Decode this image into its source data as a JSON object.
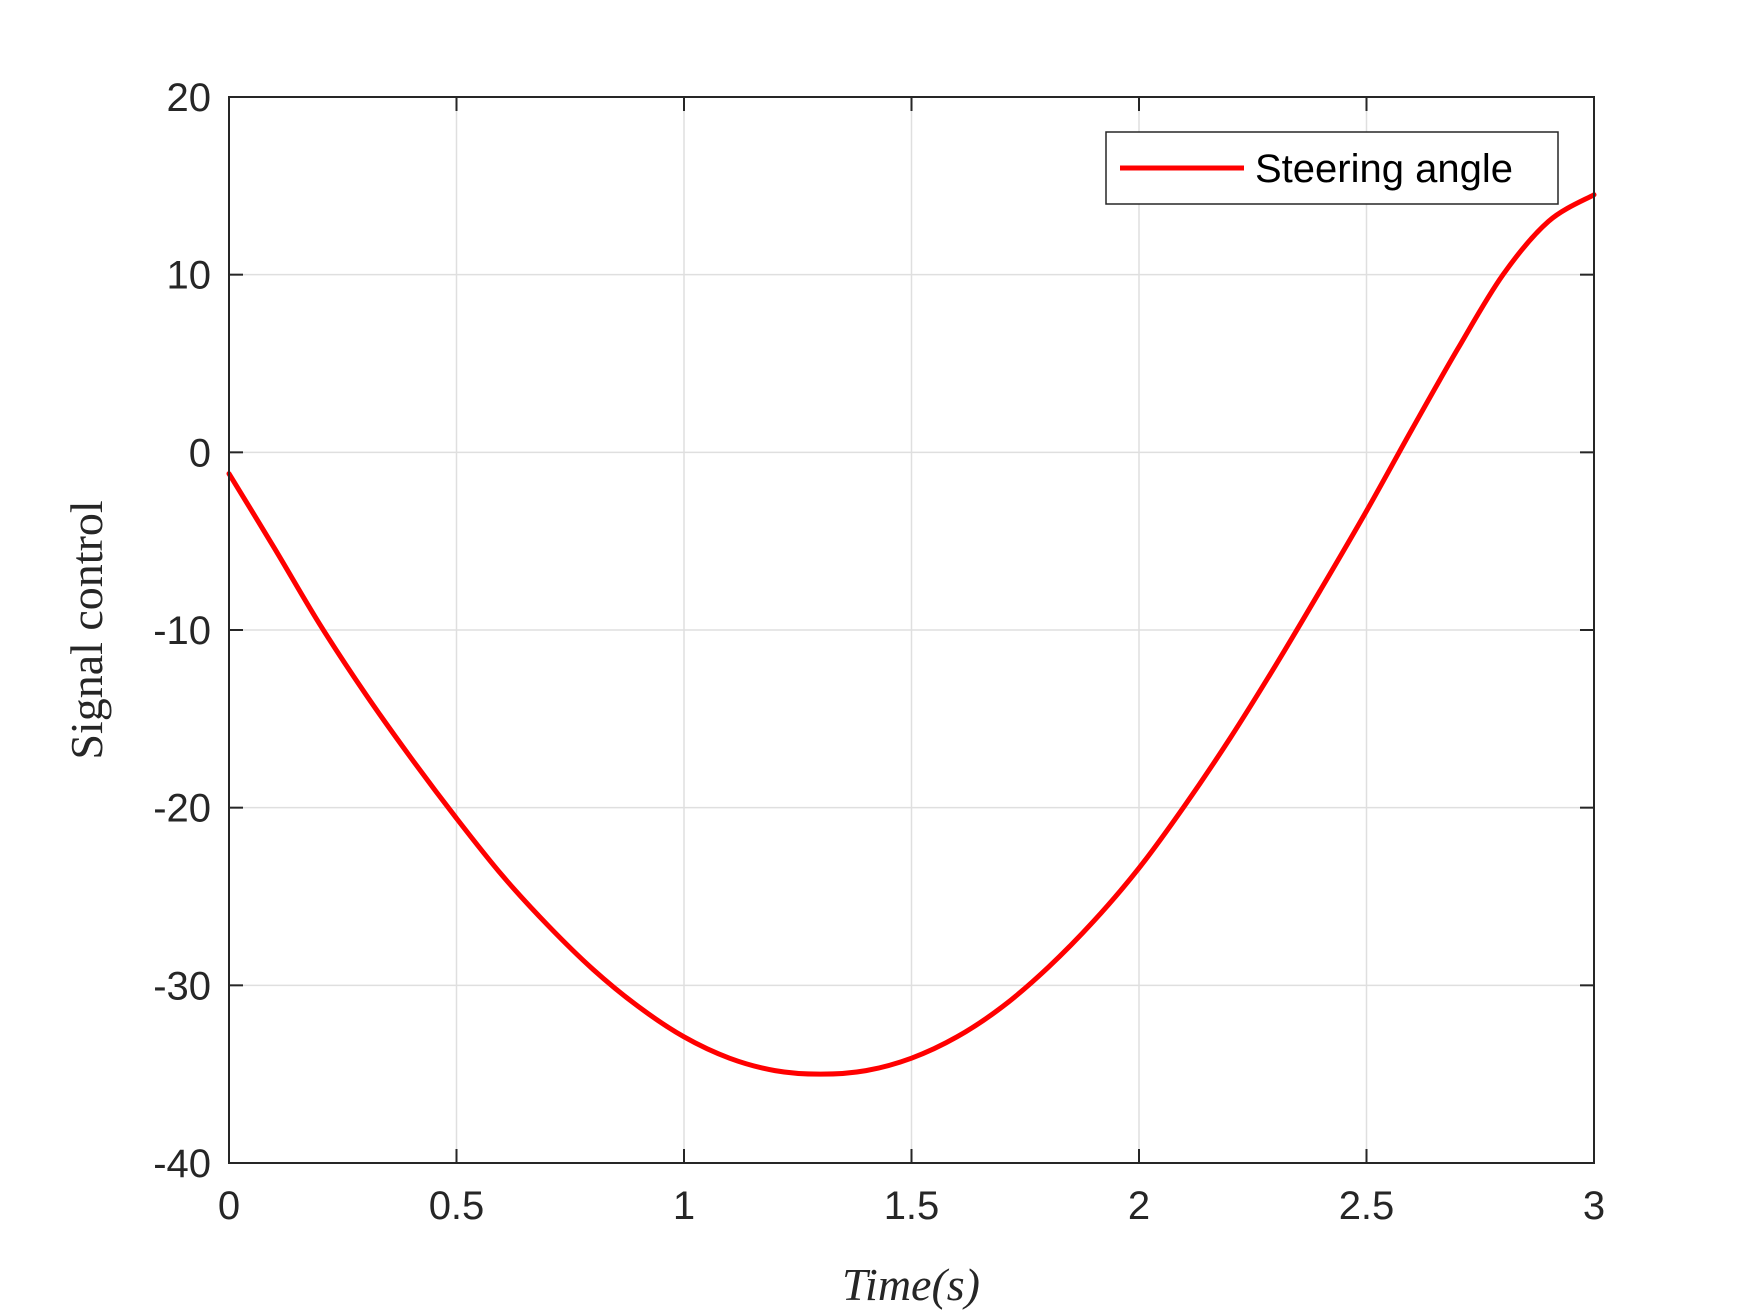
{
  "colors": {
    "series": "#ff0000",
    "grid": "#dfdfdf",
    "axis": "#262626",
    "background": "#ffffff"
  },
  "chart_data": {
    "type": "line",
    "title": "",
    "xlabel": "Time(s)",
    "ylabel": "Signal control",
    "xlim": [
      0,
      3
    ],
    "ylim": [
      -40,
      20
    ],
    "xticks": [
      0,
      0.5,
      1,
      1.5,
      2,
      2.5,
      3
    ],
    "xtick_labels": [
      "0",
      "0.5",
      "1",
      "1.5",
      "2",
      "2.5",
      "3"
    ],
    "yticks": [
      20,
      10,
      0,
      -10,
      -20,
      -30,
      -40
    ],
    "ytick_labels": [
      "20",
      "10",
      "0",
      "-10",
      "-20",
      "-30",
      "-40"
    ],
    "grid": true,
    "legend_position": "top-right",
    "series": [
      {
        "name": "Steering angle",
        "color": "#ff0000",
        "x": [
          0,
          0.1,
          0.2,
          0.3,
          0.4,
          0.5,
          0.6,
          0.7,
          0.8,
          0.9,
          1.0,
          1.1,
          1.2,
          1.3,
          1.4,
          1.5,
          1.6,
          1.7,
          1.8,
          1.9,
          2.0,
          2.1,
          2.2,
          2.3,
          2.4,
          2.5,
          2.6,
          2.7,
          2.8,
          2.9,
          3.0
        ],
        "y": [
          -1.2,
          -5.4,
          -9.7,
          -13.6,
          -17.2,
          -20.6,
          -23.8,
          -26.6,
          -29.1,
          -31.2,
          -32.9,
          -34.1,
          -34.8,
          -35.0,
          -34.8,
          -34.1,
          -32.9,
          -31.2,
          -29.0,
          -26.4,
          -23.4,
          -19.9,
          -16.1,
          -12.0,
          -7.7,
          -3.3,
          1.3,
          5.8,
          10.0,
          13.0,
          14.5
        ]
      }
    ]
  }
}
